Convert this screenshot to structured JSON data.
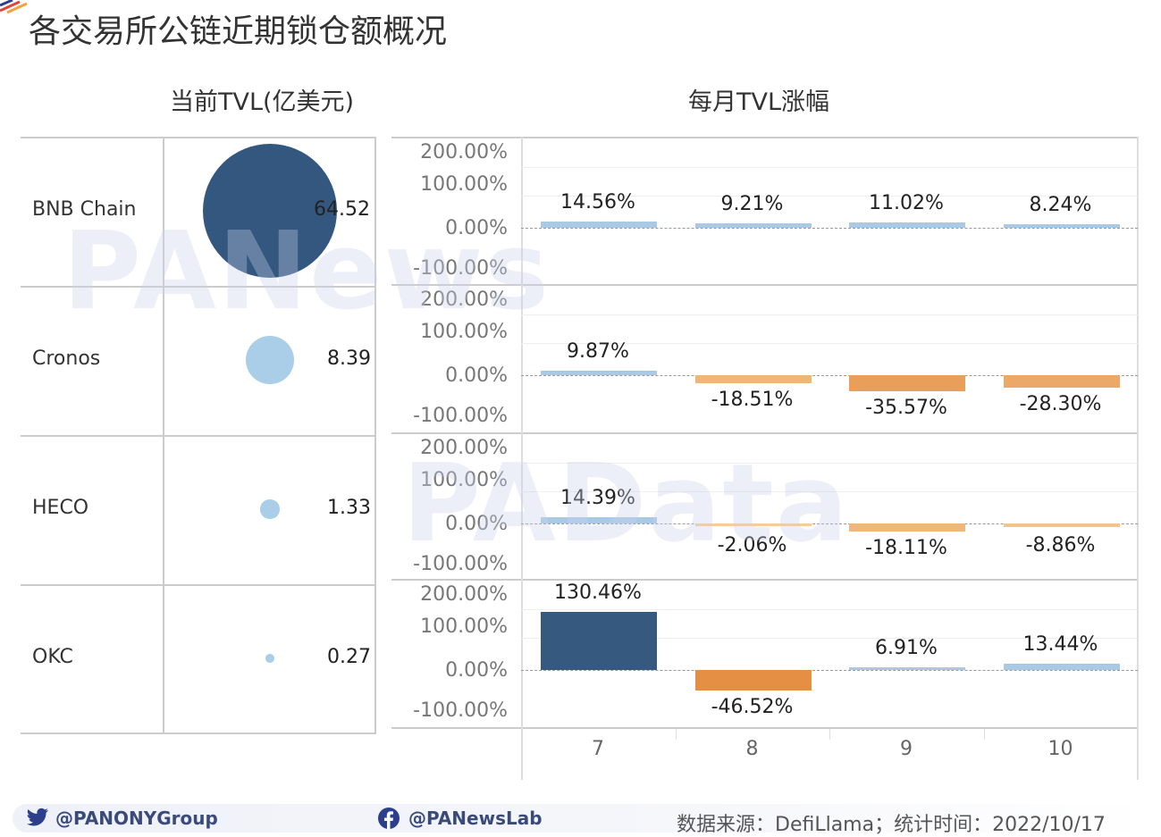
{
  "title": "各交易所公链近期锁仓额概况",
  "watermarks": [
    "PANews",
    "PAData"
  ],
  "chart_data": [
    {
      "type": "scatter",
      "title": "当前TVL(亿美元)",
      "encoding": "bubble-size",
      "categories": [
        "BNB Chain",
        "Cronos",
        "HECO",
        "OKC"
      ],
      "values": [
        64.52,
        8.39,
        1.33,
        0.27
      ],
      "labels": [
        "64.52",
        "8.39",
        "1.33",
        "0.27"
      ],
      "colors": [
        "#34577f",
        "#aacde8",
        "#aacde8",
        "#aacde8"
      ]
    },
    {
      "type": "bar",
      "title": "每月TVL涨幅",
      "x": [
        "7",
        "8",
        "9",
        "10"
      ],
      "yticks": [
        "200.00%",
        "100.00%",
        "0.00%",
        "-100.00%"
      ],
      "ylim": [
        -100,
        230
      ],
      "unit": "%",
      "series": [
        {
          "name": "BNB Chain",
          "values": [
            14.56,
            9.21,
            11.02,
            8.24
          ],
          "labels": [
            "14.56%",
            "9.21%",
            "11.02%",
            "8.24%"
          ]
        },
        {
          "name": "Cronos",
          "values": [
            9.87,
            -18.51,
            -35.57,
            -28.3
          ],
          "labels": [
            "9.87%",
            "-18.51%",
            "-35.57%",
            "-28.30%"
          ]
        },
        {
          "name": "HECO",
          "values": [
            14.39,
            -2.06,
            -18.11,
            -8.86
          ],
          "labels": [
            "14.39%",
            "-2.06%",
            "-18.11%",
            "-8.86%"
          ]
        },
        {
          "name": "OKC",
          "values": [
            130.46,
            -46.52,
            6.91,
            13.44
          ],
          "labels": [
            "130.46%",
            "-46.52%",
            "6.91%",
            "13.44%"
          ]
        }
      ],
      "colors": {
        "positive_light": "#a9c9e5",
        "positive_dark": "#35597f",
        "negative_light": "#f6d09c",
        "negative_dark": "#e58f45"
      }
    }
  ],
  "footer": {
    "twitter": "@PANONYGroup",
    "facebook": "@PANewsLab",
    "source": "数据来源：DefiLlama；统计时间：2022/10/17"
  }
}
